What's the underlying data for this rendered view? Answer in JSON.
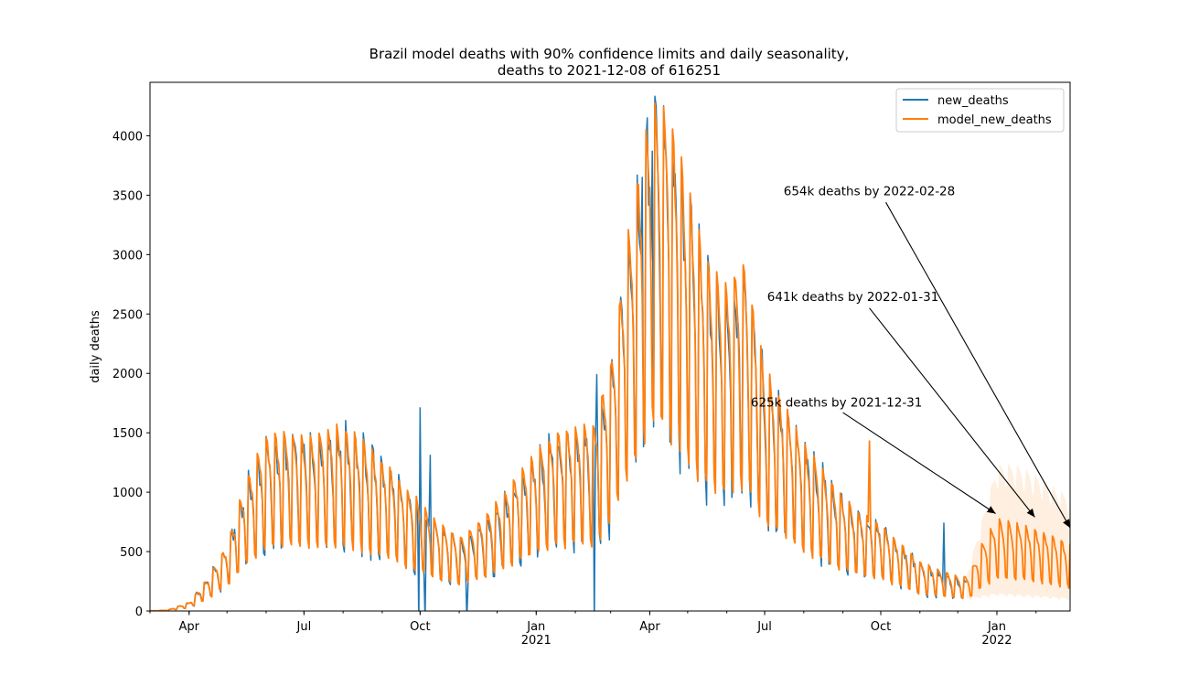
{
  "chart_data": {
    "type": "line",
    "title_line1": "Brazil model deaths with 90% confidence limits and daily seasonality,",
    "title_line2": "deaths to 2021-12-08 of 616251",
    "xlabel": "",
    "ylabel": "daily deaths",
    "ylim": [
      0,
      4450
    ],
    "xlim": [
      "2020-03-01",
      "2022-02-28"
    ],
    "y_ticks": [
      0,
      500,
      1000,
      1500,
      2000,
      2500,
      3000,
      3500,
      4000
    ],
    "x_ticks": [
      {
        "date": "2020-04-01",
        "label": "Apr",
        "sublabel": ""
      },
      {
        "date": "2020-07-01",
        "label": "Jul",
        "sublabel": ""
      },
      {
        "date": "2020-10-01",
        "label": "Oct",
        "sublabel": ""
      },
      {
        "date": "2021-01-01",
        "label": "Jan",
        "sublabel": "2021"
      },
      {
        "date": "2021-04-01",
        "label": "Apr",
        "sublabel": ""
      },
      {
        "date": "2021-07-01",
        "label": "Jul",
        "sublabel": ""
      },
      {
        "date": "2021-10-01",
        "label": "Oct",
        "sublabel": ""
      },
      {
        "date": "2022-01-01",
        "label": "Jan",
        "sublabel": "2022"
      }
    ],
    "legend": {
      "placement": "top-right",
      "entries": [
        "new_deaths",
        "model_new_deaths"
      ]
    },
    "series": [
      {
        "name": "new_deaths",
        "color": "#1f77b4",
        "data_start": "2020-03-01",
        "data_end": "2021-12-08",
        "weekly_anchors": [
          [
            "2020-03-01",
            0
          ],
          [
            "2020-03-15",
            5
          ],
          [
            "2020-04-01",
            50
          ],
          [
            "2020-04-15",
            180
          ],
          [
            "2020-05-01",
            380
          ],
          [
            "2020-05-15",
            720
          ],
          [
            "2020-06-01",
            950
          ],
          [
            "2020-06-15",
            1000
          ],
          [
            "2020-07-01",
            1010
          ],
          [
            "2020-07-15",
            1040
          ],
          [
            "2020-08-01",
            1040
          ],
          [
            "2020-08-15",
            980
          ],
          [
            "2020-09-01",
            860
          ],
          [
            "2020-09-15",
            750
          ],
          [
            "2020-10-01",
            620
          ],
          [
            "2020-10-15",
            510
          ],
          [
            "2020-11-01",
            400
          ],
          [
            "2020-11-15",
            480
          ],
          [
            "2020-12-01",
            590
          ],
          [
            "2020-12-15",
            720
          ],
          [
            "2021-01-01",
            880
          ],
          [
            "2021-01-15",
            1000
          ],
          [
            "2021-02-01",
            1060
          ],
          [
            "2021-02-15",
            1040
          ],
          [
            "2021-03-01",
            1350
          ],
          [
            "2021-03-15",
            2100
          ],
          [
            "2021-04-01",
            2850
          ],
          [
            "2021-04-10",
            2950
          ],
          [
            "2021-04-20",
            2700
          ],
          [
            "2021-05-01",
            2350
          ],
          [
            "2021-05-15",
            1950
          ],
          [
            "2021-06-01",
            1850
          ],
          [
            "2021-06-15",
            1980
          ],
          [
            "2021-07-01",
            1400
          ],
          [
            "2021-07-15",
            1200
          ],
          [
            "2021-08-01",
            950
          ],
          [
            "2021-08-15",
            820
          ],
          [
            "2021-09-01",
            650
          ],
          [
            "2021-09-15",
            560
          ],
          [
            "2021-10-01",
            500
          ],
          [
            "2021-10-15",
            400
          ],
          [
            "2021-11-01",
            280
          ],
          [
            "2021-11-15",
            230
          ],
          [
            "2021-12-01",
            190
          ],
          [
            "2021-12-08",
            180
          ]
        ],
        "spikes": [
          [
            "2020-10-01",
            1710
          ],
          [
            "2020-10-09",
            1310
          ],
          [
            "2020-09-30",
            -120
          ],
          [
            "2020-10-05",
            -80
          ],
          [
            "2020-11-07",
            -80
          ],
          [
            "2021-02-18",
            1990
          ],
          [
            "2021-02-16",
            -120
          ],
          [
            "2021-04-06",
            4250
          ],
          [
            "2021-04-03",
            3870
          ],
          [
            "2021-03-26",
            3650
          ],
          [
            "2021-11-20",
            740
          ]
        ]
      },
      {
        "name": "model_new_deaths",
        "color": "#ff7f0e",
        "data_start": "2020-03-01",
        "data_end": "2022-02-28",
        "weekly_anchors": [
          [
            "2020-03-01",
            0
          ],
          [
            "2020-03-15",
            5
          ],
          [
            "2020-04-01",
            50
          ],
          [
            "2020-04-15",
            180
          ],
          [
            "2020-05-01",
            380
          ],
          [
            "2020-05-15",
            720
          ],
          [
            "2020-06-01",
            1000
          ],
          [
            "2020-06-15",
            1020
          ],
          [
            "2020-07-01",
            1000
          ],
          [
            "2020-07-15",
            1040
          ],
          [
            "2020-08-01",
            1050
          ],
          [
            "2020-08-15",
            980
          ],
          [
            "2020-09-01",
            860
          ],
          [
            "2020-09-15",
            750
          ],
          [
            "2020-10-01",
            620
          ],
          [
            "2020-10-15",
            510
          ],
          [
            "2020-11-01",
            420
          ],
          [
            "2020-11-15",
            500
          ],
          [
            "2020-12-01",
            620
          ],
          [
            "2020-12-15",
            760
          ],
          [
            "2021-01-01",
            900
          ],
          [
            "2021-01-15",
            1020
          ],
          [
            "2021-02-01",
            1060
          ],
          [
            "2021-02-15",
            1060
          ],
          [
            "2021-03-01",
            1400
          ],
          [
            "2021-03-15",
            2150
          ],
          [
            "2021-04-01",
            2850
          ],
          [
            "2021-04-10",
            2950
          ],
          [
            "2021-04-20",
            2750
          ],
          [
            "2021-05-01",
            2400
          ],
          [
            "2021-05-15",
            2000
          ],
          [
            "2021-06-01",
            1900
          ],
          [
            "2021-06-15",
            2000
          ],
          [
            "2021-07-01",
            1400
          ],
          [
            "2021-07-15",
            1200
          ],
          [
            "2021-08-01",
            950
          ],
          [
            "2021-08-15",
            820
          ],
          [
            "2021-09-01",
            650
          ],
          [
            "2021-09-15",
            560
          ],
          [
            "2021-10-01",
            500
          ],
          [
            "2021-10-15",
            400
          ],
          [
            "2021-11-01",
            280
          ],
          [
            "2021-11-15",
            240
          ],
          [
            "2021-12-01",
            200
          ],
          [
            "2021-12-10",
            200
          ],
          [
            "2021-12-20",
            380
          ],
          [
            "2022-01-01",
            520
          ],
          [
            "2022-01-15",
            500
          ],
          [
            "2022-02-01",
            460
          ],
          [
            "2022-02-15",
            420
          ],
          [
            "2022-02-28",
            380
          ]
        ],
        "spikes": [
          [
            "2021-06-24",
            2060
          ],
          [
            "2021-09-22",
            1430
          ]
        ]
      }
    ],
    "confidence_band": {
      "label": "90% confidence limits",
      "color": "#fde5cc",
      "start": "2021-12-08",
      "end": "2022-02-28",
      "upper_anchors": [
        [
          "2021-12-08",
          280
        ],
        [
          "2021-12-20",
          700
        ],
        [
          "2022-01-01",
          1130
        ],
        [
          "2022-01-15",
          1140
        ],
        [
          "2022-02-01",
          1060
        ],
        [
          "2022-02-15",
          960
        ],
        [
          "2022-02-28",
          890
        ]
      ],
      "lower_anchors": [
        [
          "2021-12-08",
          100
        ],
        [
          "2021-12-20",
          120
        ],
        [
          "2022-01-01",
          140
        ],
        [
          "2022-01-15",
          130
        ],
        [
          "2022-02-01",
          120
        ],
        [
          "2022-02-15",
          110
        ],
        [
          "2022-02-28",
          100
        ]
      ]
    },
    "annotations": [
      {
        "text": "625k deaths by 2021-12-31",
        "text_date": "2021-06-20",
        "text_value": 1720,
        "arrow_from_date": "2021-09-01",
        "arrow_from_value": 1670,
        "arrow_to_date": "2021-12-31",
        "arrow_to_value": 820
      },
      {
        "text": "641k deaths by 2022-01-31",
        "text_date": "2021-07-03",
        "text_value": 2610,
        "arrow_from_date": "2021-09-22",
        "arrow_from_value": 2550,
        "arrow_to_date": "2022-01-31",
        "arrow_to_value": 790
      },
      {
        "text": "654k deaths by 2022-02-28",
        "text_date": "2021-07-16",
        "text_value": 3500,
        "arrow_from_date": "2021-10-05",
        "arrow_from_value": 3440,
        "arrow_to_date": "2022-02-28",
        "arrow_to_value": 700
      }
    ]
  }
}
